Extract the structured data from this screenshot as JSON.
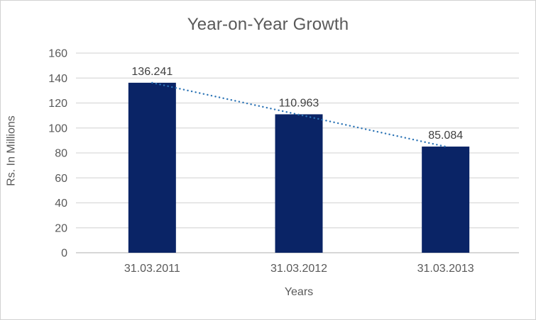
{
  "chart": {
    "title": "Year-on-Year Growth",
    "xlabel": "Years",
    "ylabel": "Rs. In Millions"
  },
  "chart_data": {
    "type": "bar",
    "title": "Year-on-Year Growth",
    "xlabel": "Years",
    "ylabel": "Rs. In Millions",
    "categories": [
      "31.03.2011",
      "31.03.2012",
      "31.03.2013"
    ],
    "values": [
      136.241,
      110.963,
      85.084
    ],
    "data_labels": [
      "136.241",
      "110.963",
      "85.084"
    ],
    "ylim": [
      0,
      160
    ],
    "yticks": [
      0,
      20,
      40,
      60,
      80,
      100,
      120,
      140,
      160
    ],
    "grid": true,
    "legend": "none",
    "trendline": {
      "type": "linear",
      "style": "dotted"
    },
    "colors": {
      "bar": "#0a2466",
      "trendline": "#2e75b6",
      "gridline": "#d9d9d9",
      "axis_line": "#bfbfbf",
      "axis_text": "#595959",
      "data_label_text": "#404040",
      "title_text": "#595959",
      "frame_border": "#d2d2d2",
      "background": "#ffffff"
    }
  }
}
